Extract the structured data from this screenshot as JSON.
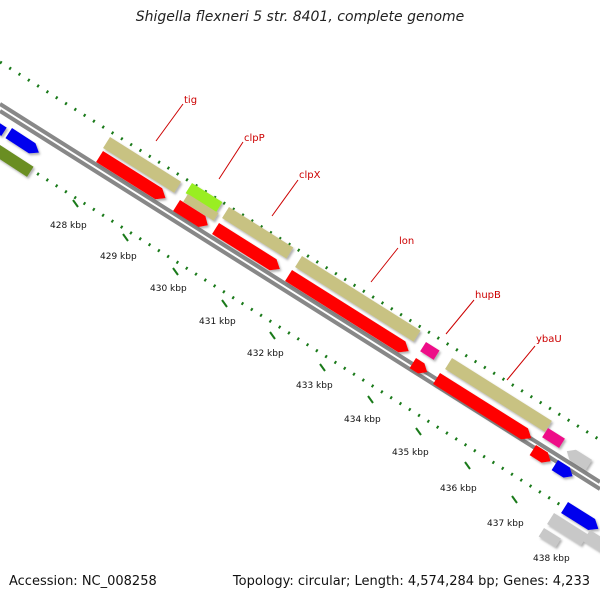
{
  "title": "Shigella flexneri 5 str. 8401, complete genome",
  "footer": {
    "accession": "Accession: NC_008258",
    "topology": "Topology: circular; Length: 4,574,284 bp; Genes: 4,233"
  },
  "ticks": [
    "428 kbp",
    "429 kbp",
    "430 kbp",
    "431 kbp",
    "432 kbp",
    "433 kbp",
    "434 kbp",
    "435 kbp",
    "436 kbp",
    "437 kbp",
    "438 kbp"
  ],
  "gene_labels": [
    "tig",
    "clpP",
    "clpX",
    "lon",
    "hupB",
    "ybaU"
  ],
  "colors": {
    "backbone": "#8a8a8a",
    "cds": "#ff0000",
    "gene": "#c8c282",
    "labels": "#cc0000",
    "tick": "#1a7a1a",
    "blue_feature": "#0000ee",
    "olive_feature": "#6b8e23",
    "lime_feature": "#99ee22",
    "pink_feature": "#ee1188",
    "grey_feature": "#c8c8c8"
  }
}
